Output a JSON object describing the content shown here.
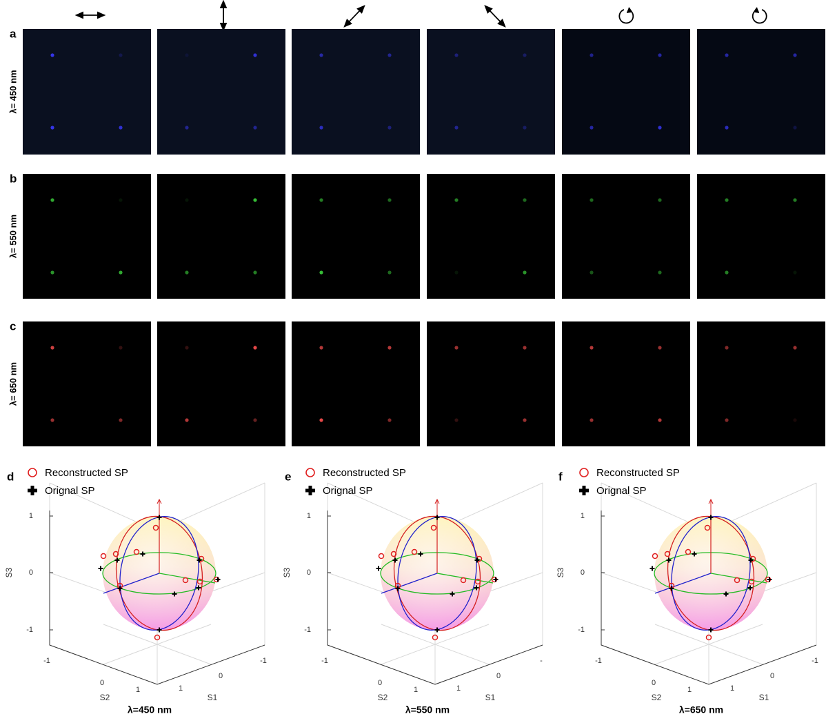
{
  "image_rows": [
    {
      "label": "a",
      "wavelength": "λ= 450 nm"
    },
    {
      "label": "b",
      "wavelength": "λ= 550 nm"
    },
    {
      "label": "c",
      "wavelength": "λ= 650 nm"
    }
  ],
  "sphere_panels": [
    {
      "label": "d",
      "legend": [
        "Reconstructed SP",
        "Orignal SP"
      ],
      "s3_label": "S3",
      "s2_label": "S2",
      "s1_label": "S1",
      "s3_ticks": [
        "1",
        "0",
        "-1"
      ],
      "s2_ticks": [
        "-1",
        "0",
        "1"
      ],
      "s1_ticks": [
        "1",
        "0",
        "-1"
      ],
      "caption": "λ=450 nm"
    },
    {
      "label": "e",
      "legend": [
        "Reconstructed SP",
        "Orignal SP"
      ],
      "s3_label": "S3",
      "s2_label": "S2",
      "s1_label": "S1",
      "s3_ticks": [
        "1",
        "0",
        "-1"
      ],
      "s2_ticks": [
        "-1",
        "0",
        "1"
      ],
      "s1_ticks": [
        "1",
        "0",
        "-"
      ],
      "caption": "λ=550 nm"
    },
    {
      "label": "f",
      "legend": [
        "Reconstructed SP",
        "Orignal SP"
      ],
      "s3_label": "S3",
      "s2_label": "S2",
      "s1_label": "S1",
      "s3_ticks": [
        "1",
        "0",
        "-1"
      ],
      "s2_ticks": [
        "-1",
        "0",
        "1"
      ],
      "s1_ticks": [
        "1",
        "0",
        "-1"
      ],
      "caption": "λ=650 nm"
    }
  ]
}
